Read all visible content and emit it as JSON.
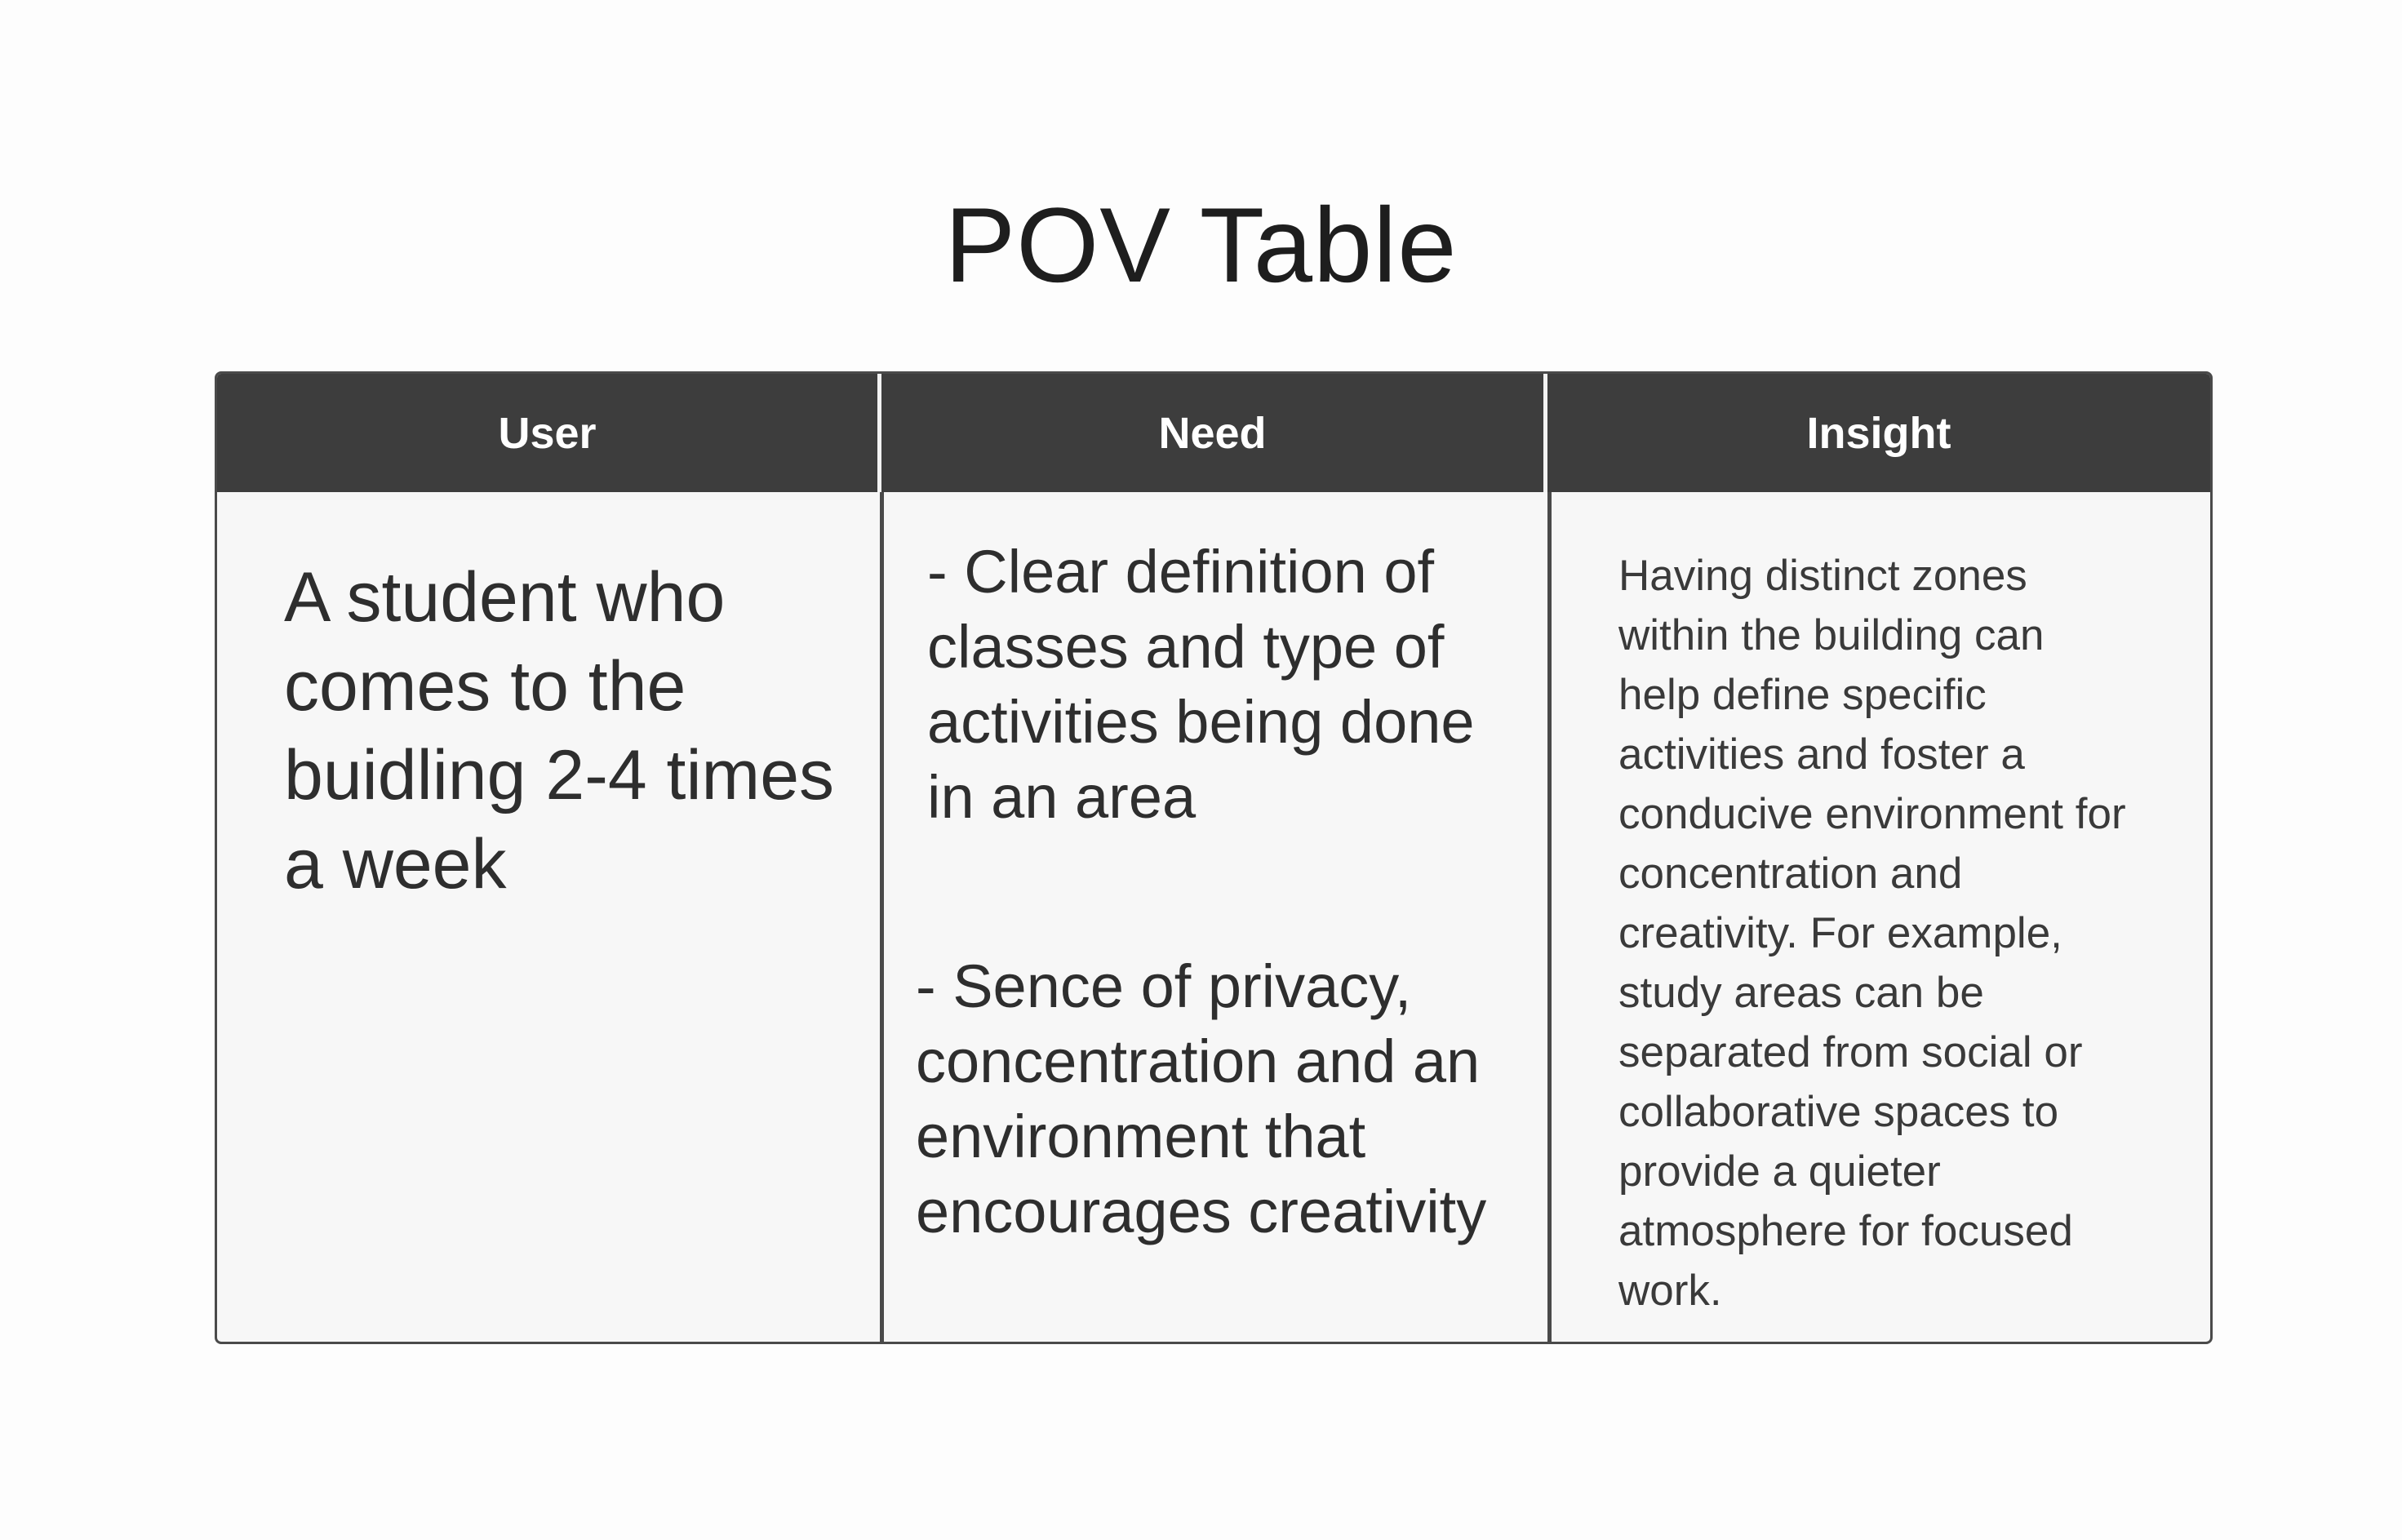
{
  "title": "POV Table",
  "table": {
    "headers": {
      "user": "User",
      "need": "Need",
      "insight": "Insight"
    },
    "rows": [
      {
        "user": "A student who\ncomes to the\nbuidling 2-4 times\na week",
        "need_1": "- Clear definition of\nclasses and type of\nactivities being done\nin an area",
        "need_2": "- Sence of privacy,\nconcentration and an\nenvironment that\nencourages creativity",
        "insight": "Having distinct zones\nwithin the building can\nhelp define specific\nactivities and foster a\nconducive environment for\nconcentration and\ncreativity. For example,\nstudy areas can be\nseparated from social or\ncollaborative spaces to\nprovide a quieter\natmosphere for focused\nwork."
      }
    ]
  },
  "colors": {
    "header_background": "#3d3d3d",
    "header_text": "#ffffff",
    "cell_background": "#f7f7f7",
    "border": "#4a4a4a"
  }
}
